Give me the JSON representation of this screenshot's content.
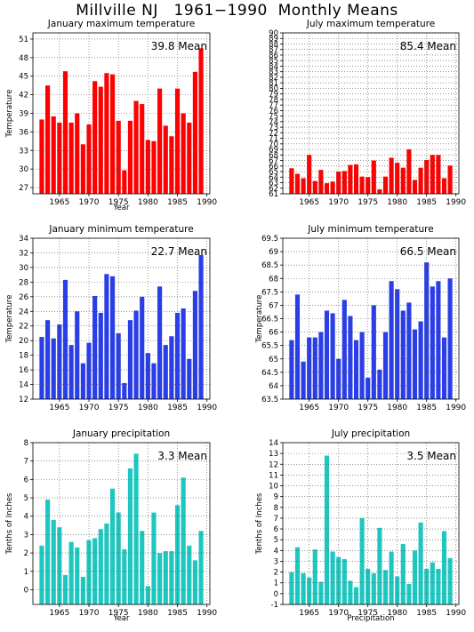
{
  "title": "Millville NJ   1961−1990  Monthly Means",
  "chart_data": [
    {
      "type": "bar",
      "title": "January maximum temperature",
      "mean_label": "39.8  Mean",
      "xlabel": "Year",
      "ylabel": "Temperature",
      "color": "#ff0000",
      "ylim": [
        26,
        52
      ],
      "yticks": [
        27,
        30,
        33,
        36,
        39,
        42,
        45,
        48,
        51
      ],
      "xticks": [
        1965,
        1970,
        1975,
        1980,
        1985,
        1990
      ],
      "x": [
        1961,
        1962,
        1963,
        1964,
        1965,
        1966,
        1967,
        1968,
        1969,
        1970,
        1971,
        1972,
        1973,
        1974,
        1975,
        1976,
        1977,
        1978,
        1979,
        1980,
        1981,
        1982,
        1983,
        1984,
        1985,
        1986,
        1987,
        1988,
        1989,
        1990
      ],
      "values": [
        26,
        38,
        43.5,
        38.5,
        37.5,
        45.8,
        37.5,
        39,
        34,
        37.2,
        44.2,
        43.3,
        45.5,
        45.3,
        37.8,
        29.8,
        37.8,
        41,
        40.5,
        34.7,
        34.5,
        43,
        37,
        35.3,
        43,
        39,
        37.5,
        45.7,
        49.5,
        26
      ],
      "grid": true
    },
    {
      "type": "bar",
      "title": "July maximum temperature",
      "mean_label": "85.4  Mean",
      "xlabel": "",
      "ylabel": "",
      "color": "#ff0000",
      "ylim": [
        61,
        90
      ],
      "yticks": [
        61,
        62,
        63,
        64,
        65,
        66,
        67,
        68,
        69,
        70,
        71,
        72,
        73,
        74,
        75,
        76,
        77,
        78,
        79,
        80,
        81,
        82,
        83,
        84,
        85,
        86,
        87,
        88,
        89,
        90
      ],
      "ytick_labels": [
        "61",
        "62",
        "63",
        "64",
        "65",
        "66",
        "67",
        "68",
        "69",
        "70",
        "71",
        "72",
        "73",
        "74",
        "75",
        "76",
        "77",
        "78",
        "79",
        "80",
        "81",
        "82",
        "83",
        "84",
        "85",
        "86",
        "87",
        "88",
        "89",
        "90"
      ],
      "xticks": [
        1965,
        1970,
        1975,
        1980,
        1985,
        1990
      ],
      "x": [
        1961,
        1962,
        1963,
        1964,
        1965,
        1966,
        1967,
        1968,
        1969,
        1970,
        1971,
        1972,
        1973,
        1974,
        1975,
        1976,
        1977,
        1978,
        1979,
        1980,
        1981,
        1982,
        1983,
        1984,
        1985,
        1986,
        1987,
        1988,
        1989,
        1990
      ],
      "values": [
        61,
        65.6,
        64.6,
        63.8,
        68,
        63.3,
        65.3,
        62.9,
        63.2,
        65,
        65.1,
        66.2,
        66.3,
        64.1,
        64,
        67,
        61.8,
        64.1,
        67.5,
        66.6,
        65.7,
        69,
        63.5,
        65.7,
        67.1,
        68,
        68,
        63.8,
        66.1,
        61
      ],
      "grid": true
    },
    {
      "type": "bar",
      "title": "January minimum temperature",
      "mean_label": "22.7  Mean",
      "xlabel": "",
      "ylabel": "Temperature",
      "color": "#2a3ee8",
      "ylim": [
        12,
        34
      ],
      "yticks": [
        12,
        14,
        16,
        18,
        20,
        22,
        24,
        26,
        28,
        30,
        32,
        34
      ],
      "xticks": [
        1965,
        1970,
        1975,
        1980,
        1985,
        1990
      ],
      "x": [
        1961,
        1962,
        1963,
        1964,
        1965,
        1966,
        1967,
        1968,
        1969,
        1970,
        1971,
        1972,
        1973,
        1974,
        1975,
        1976,
        1977,
        1978,
        1979,
        1980,
        1981,
        1982,
        1983,
        1984,
        1985,
        1986,
        1987,
        1988,
        1989,
        1990
      ],
      "values": [
        12,
        20.5,
        22.8,
        20.3,
        22.2,
        28.3,
        19.4,
        24,
        16.9,
        19.7,
        26.1,
        23.8,
        29.1,
        28.8,
        21,
        14.2,
        22.8,
        24.1,
        26,
        18.3,
        16.9,
        27.4,
        19.4,
        20.6,
        23.8,
        24.4,
        17.5,
        26.8,
        31.7,
        12
      ],
      "grid": true
    },
    {
      "type": "bar",
      "title": "July minimum temperature",
      "mean_label": "66.5  Mean",
      "xlabel": "",
      "ylabel": "Temperature",
      "color": "#2a3ee8",
      "ylim": [
        63.5,
        69.5
      ],
      "yticks": [
        63.5,
        64,
        64.5,
        65,
        65.5,
        66,
        66.5,
        67,
        67.5,
        68,
        68.5,
        69,
        69.5
      ],
      "xticks": [
        1965,
        1970,
        1975,
        1980,
        1985,
        1990
      ],
      "x": [
        1961,
        1962,
        1963,
        1964,
        1965,
        1966,
        1967,
        1968,
        1969,
        1970,
        1971,
        1972,
        1973,
        1974,
        1975,
        1976,
        1977,
        1978,
        1979,
        1980,
        1981,
        1982,
        1983,
        1984,
        1985,
        1986,
        1987,
        1988,
        1989,
        1990
      ],
      "values": [
        63.5,
        65.7,
        67.4,
        64.9,
        65.8,
        65.8,
        66,
        66.8,
        66.7,
        65,
        67.2,
        66.6,
        65.7,
        66,
        64.3,
        67,
        64.6,
        66,
        67.9,
        67.6,
        66.8,
        67.1,
        66.1,
        66.4,
        68.6,
        67.7,
        67.9,
        65.8,
        68,
        63.5
      ],
      "grid": true
    },
    {
      "type": "bar",
      "title": "January precipitation",
      "mean_label": "3.3  Mean",
      "xlabel": "Year",
      "ylabel": "Tenths of Inches",
      "color": "#1ec8c0",
      "ylim": [
        -0.8,
        8
      ],
      "yticks": [
        0,
        1,
        2,
        3,
        4,
        5,
        6,
        7,
        8
      ],
      "xticks": [
        1965,
        1970,
        1975,
        1980,
        1985,
        1990
      ],
      "x": [
        1961,
        1962,
        1963,
        1964,
        1965,
        1966,
        1967,
        1968,
        1969,
        1970,
        1971,
        1972,
        1973,
        1974,
        1975,
        1976,
        1977,
        1978,
        1979,
        1980,
        1981,
        1982,
        1983,
        1984,
        1985,
        1986,
        1987,
        1988,
        1989,
        1990
      ],
      "values": [
        -0.8,
        2.4,
        4.9,
        3.8,
        3.4,
        0.8,
        2.6,
        2.3,
        0.7,
        2.7,
        2.8,
        3.3,
        3.6,
        5.5,
        4.2,
        2.2,
        6.6,
        7.4,
        3.2,
        0.2,
        4.2,
        2,
        2.1,
        2.1,
        4.6,
        6.1,
        2.4,
        1.6,
        3.2,
        -0.8
      ],
      "grid": true
    },
    {
      "type": "bar",
      "title": "July precipitation",
      "mean_label": "3.5  Mean",
      "xlabel": "Precipitation",
      "ylabel": "Tenths of Inches",
      "color": "#1ec8c0",
      "ylim": [
        -1,
        14
      ],
      "yticks": [
        -1,
        0,
        1,
        2,
        3,
        4,
        5,
        6,
        7,
        8,
        9,
        10,
        11,
        12,
        13,
        14
      ],
      "xticks": [
        1965,
        1970,
        1975,
        1980,
        1985,
        1990
      ],
      "x": [
        1961,
        1962,
        1963,
        1964,
        1965,
        1966,
        1967,
        1968,
        1969,
        1970,
        1971,
        1972,
        1973,
        1974,
        1975,
        1976,
        1977,
        1978,
        1979,
        1980,
        1981,
        1982,
        1983,
        1984,
        1985,
        1986,
        1987,
        1988,
        1989,
        1990
      ],
      "values": [
        -1,
        2,
        4.3,
        1.9,
        1.5,
        4.1,
        1.1,
        12.8,
        3.9,
        3.4,
        3.2,
        1.2,
        0.6,
        7,
        2.3,
        1.9,
        6.1,
        2.2,
        3.9,
        1.6,
        4.6,
        0.9,
        4,
        6.6,
        2.3,
        2.9,
        2.3,
        5.8,
        3.3,
        -1
      ],
      "grid": true
    }
  ]
}
